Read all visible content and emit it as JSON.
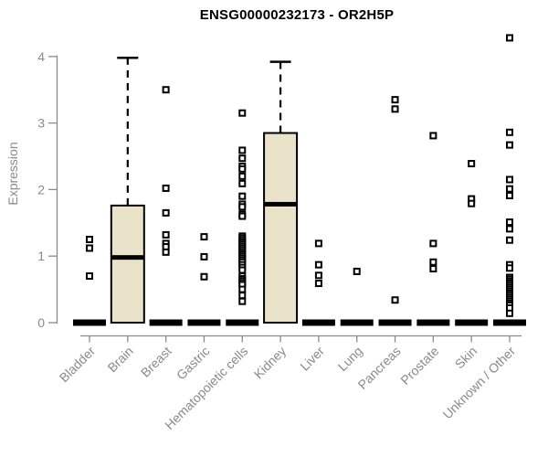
{
  "title": "ENSG00000232173 - OR2H5P",
  "ylabel": "Expression",
  "chart_data": {
    "type": "boxplot",
    "title": "ENSG00000232173 - OR2H5P",
    "xlabel": "",
    "ylabel": "Expression",
    "ylim": [
      0,
      4.3
    ],
    "yticks": [
      0,
      1,
      2,
      3,
      4
    ],
    "grid": false,
    "colors": {
      "box_fill": "#ebe3c9",
      "box_stroke": "#000000",
      "median": "#000000",
      "outlier_stroke": "#000000",
      "outlier_fill": "#ffffff",
      "axis": "#8a8a8a",
      "tick_label": "#8a8a8a",
      "title": "#000000"
    },
    "groups": [
      {
        "label": "Bladder",
        "q1": 0,
        "median": 0,
        "q3": 0,
        "whisker_low": 0,
        "whisker_high": 0,
        "outliers": [
          1.25,
          1.12,
          0.7
        ]
      },
      {
        "label": "Brain",
        "q1": 0,
        "median": 0.98,
        "q3": 1.76,
        "whisker_low": 0,
        "whisker_high": 3.98,
        "outliers": []
      },
      {
        "label": "Breast",
        "q1": 0,
        "median": 0,
        "q3": 0,
        "whisker_low": 0,
        "whisker_high": 0,
        "outliers": [
          3.5,
          2.02,
          1.65,
          1.32,
          1.19,
          1.14,
          1.06
        ]
      },
      {
        "label": "Gastric",
        "q1": 0,
        "median": 0,
        "q3": 0,
        "whisker_low": 0,
        "whisker_high": 0,
        "outliers": [
          1.29,
          0.99,
          0.69
        ]
      },
      {
        "label": "Hematopoietic cells",
        "q1": 0,
        "median": 0,
        "q3": 0,
        "whisker_low": 0,
        "whisker_high": 0,
        "outliers": [
          3.15,
          2.59,
          2.47,
          2.35,
          2.31,
          2.2,
          2.09,
          1.9,
          1.78,
          1.74,
          1.63,
          1.6,
          1.3,
          1.27,
          1.24,
          1.21,
          1.18,
          1.15,
          1.12,
          1.09,
          1.06,
          1.03,
          1.0,
          0.97,
          0.94,
          0.91,
          0.87,
          0.83,
          0.79,
          0.7,
          0.66,
          0.63,
          0.6,
          0.57,
          0.5,
          0.41,
          0.32
        ]
      },
      {
        "label": "Kidney",
        "q1": 0,
        "median": 1.78,
        "q3": 2.85,
        "whisker_low": 0,
        "whisker_high": 3.92,
        "outliers": []
      },
      {
        "label": "Liver",
        "q1": 0,
        "median": 0,
        "q3": 0,
        "whisker_low": 0,
        "whisker_high": 0,
        "outliers": [
          1.19,
          0.87,
          0.71,
          0.59
        ]
      },
      {
        "label": "Lung",
        "q1": 0,
        "median": 0,
        "q3": 0,
        "whisker_low": 0,
        "whisker_high": 0,
        "outliers": [
          0.77
        ]
      },
      {
        "label": "Pancreas",
        "q1": 0,
        "median": 0,
        "q3": 0,
        "whisker_low": 0,
        "whisker_high": 0,
        "outliers": [
          3.35,
          3.21,
          0.34
        ]
      },
      {
        "label": "Prostate",
        "q1": 0,
        "median": 0,
        "q3": 0,
        "whisker_low": 0,
        "whisker_high": 0,
        "outliers": [
          2.81,
          1.19,
          0.91,
          0.81
        ]
      },
      {
        "label": "Skin",
        "q1": 0,
        "median": 0,
        "q3": 0,
        "whisker_low": 0,
        "whisker_high": 0,
        "outliers": [
          2.39,
          1.86,
          1.79
        ]
      },
      {
        "label": "Unknown / Other",
        "q1": 0,
        "median": 0,
        "q3": 0,
        "whisker_low": 0,
        "whisker_high": 0,
        "outliers": [
          4.28,
          2.86,
          2.67,
          2.15,
          2.01,
          1.91,
          1.51,
          1.41,
          1.24,
          0.87,
          0.82,
          0.68,
          0.65,
          0.62,
          0.59,
          0.56,
          0.53,
          0.5,
          0.47,
          0.44,
          0.41,
          0.38,
          0.35,
          0.32,
          0.29,
          0.26,
          0.22,
          0.14
        ]
      }
    ]
  }
}
